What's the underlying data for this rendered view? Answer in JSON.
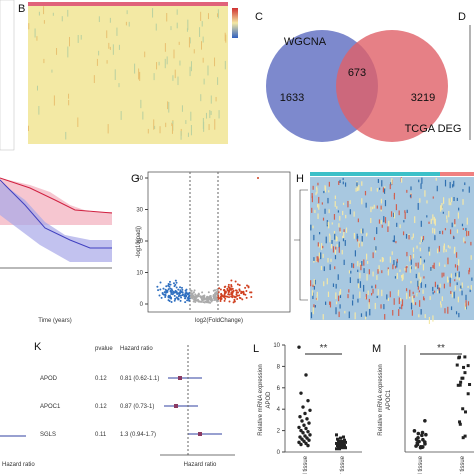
{
  "panels": {
    "b": "B",
    "c": "C",
    "d": "D",
    "g": "G",
    "h": "H",
    "k": "K",
    "l": "L",
    "m": "M"
  },
  "venn": {
    "sets": [
      "WGCNA",
      "TCGA DEG"
    ],
    "counts": [
      1633,
      673,
      3219
    ]
  },
  "volcano": {
    "xlabel": "log2(FoldChange)",
    "ylabel": "-log10(padj)",
    "ylim": [
      0,
      40
    ],
    "yticks": [
      0,
      10,
      20,
      30,
      40
    ]
  },
  "forest": {
    "headers": [
      "pvalue",
      "Hazard ratio"
    ],
    "rows": [
      [
        "APOD",
        "0.12",
        "0.81 (0.62-1.1)"
      ],
      [
        "APOC1",
        "0.12",
        "0.87 (0.73-1)"
      ],
      [
        "SGLS",
        "0.11",
        "1.3 (0.94-1.7)"
      ]
    ],
    "xlabel": "Hazard ratio",
    "left_label": "Hazard ratio"
  },
  "dot_l": {
    "ylabel": [
      "Relative mRNA expression",
      "APOD"
    ],
    "categories": [
      "Normal tissue",
      "Cancer tissue"
    ],
    "significance": "**",
    "ylim": [
      0,
      10
    ],
    "yticks": [
      0,
      2,
      4,
      6,
      8,
      10
    ],
    "series": [
      {
        "name": "Normal tissue",
        "values": [
          9.8,
          7.2,
          5.5,
          4.8,
          4.2,
          3.9,
          3.6,
          3.3,
          3.1,
          2.9,
          2.7,
          2.5,
          2.3,
          2.2,
          2.0,
          1.9,
          1.8,
          1.6,
          1.5,
          1.4,
          1.3,
          1.2,
          1.1,
          1.0,
          0.9,
          0.8,
          0.7,
          0.6
        ]
      },
      {
        "name": "Cancer tissue",
        "values": [
          1.6,
          1.4,
          1.3,
          1.2,
          1.1,
          1.0,
          1.0,
          0.9,
          0.9,
          0.8,
          0.8,
          0.7,
          0.7,
          0.6,
          0.6,
          0.5,
          0.5,
          0.4,
          0.4,
          0.3,
          0.3
        ]
      }
    ]
  },
  "dot_m": {
    "ylabel": [
      "Relative mRNA expression",
      "APOC1"
    ],
    "categories": [
      "Normal tissue",
      "Cancer tissue"
    ],
    "significance": "**"
  },
  "km": {
    "xlabel": "Time (years)"
  }
}
